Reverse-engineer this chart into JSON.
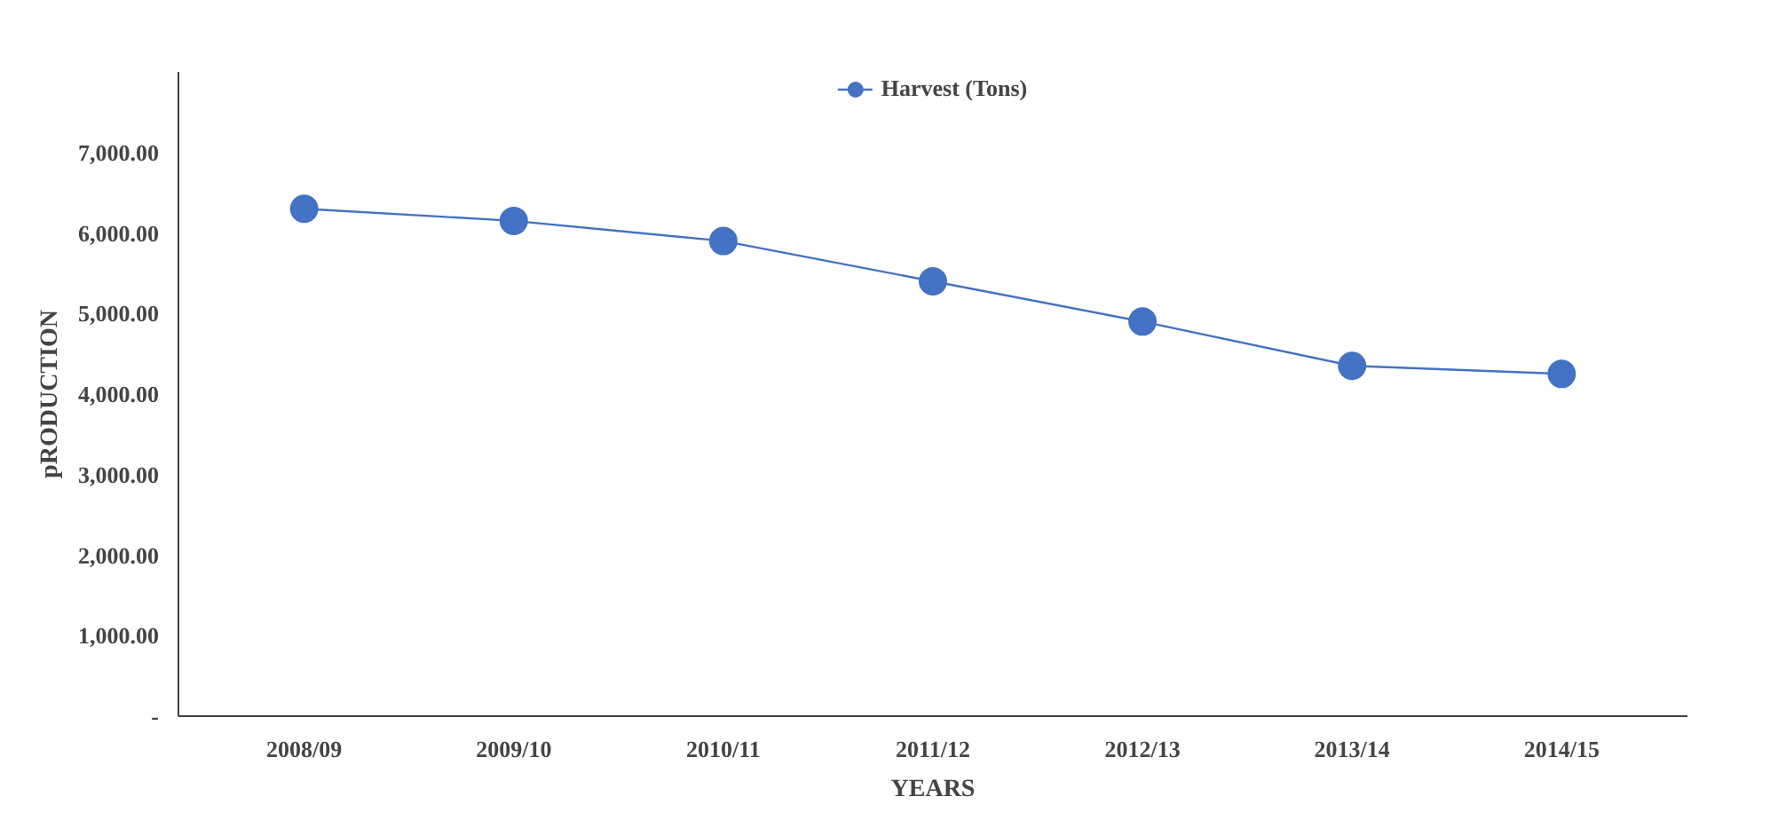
{
  "chart_data": {
    "type": "line",
    "xlabel": "YEARS",
    "ylabel": "pRODUCTION",
    "categories": [
      "2008/09",
      "2009/10",
      "2010/11",
      "2011/12",
      "2012/13",
      "2013/14",
      "2014/15"
    ],
    "series": [
      {
        "name": "Harvest (Tons)",
        "color": "#4472c4",
        "values": [
          6300,
          6150,
          5900,
          5400,
          4900,
          4350,
          4250
        ]
      }
    ],
    "ylim": [
      0,
      8000
    ],
    "yticks": [
      {
        "value": 0,
        "label": "-"
      },
      {
        "value": 1000,
        "label": "1,000.00"
      },
      {
        "value": 2000,
        "label": "2,000.00"
      },
      {
        "value": 3000,
        "label": "3,000.00"
      },
      {
        "value": 4000,
        "label": "4,000.00"
      },
      {
        "value": 5000,
        "label": "5,000.00"
      },
      {
        "value": 6000,
        "label": "6,000.00"
      },
      {
        "value": 7000,
        "label": "7,000.00"
      }
    ],
    "grid": false,
    "legend": "top",
    "marker": "circle",
    "line_style": "solid"
  }
}
